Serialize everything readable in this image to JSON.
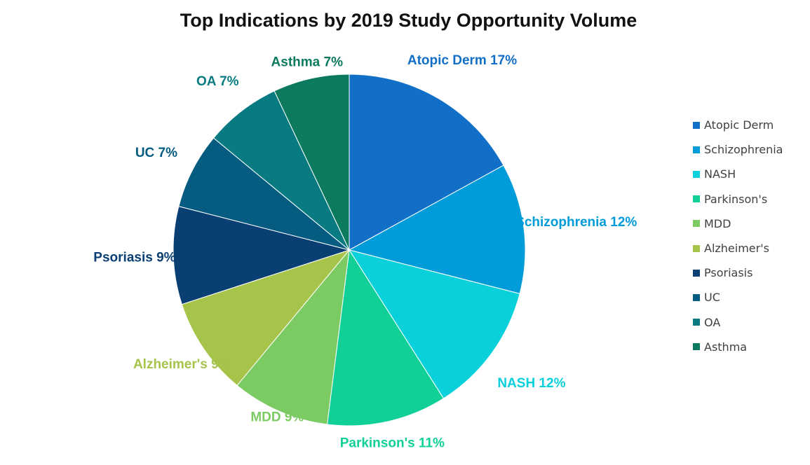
{
  "chart_data": {
    "type": "pie",
    "title": "Top Indications by 2019 Study Opportunity Volume",
    "slices": [
      {
        "label": "Atopic Derm",
        "value": 17,
        "pct_label": "17%",
        "color": "#116FC7"
      },
      {
        "label": "Schizophrenia",
        "value": 12,
        "pct_label": "12%",
        "color": "#009CD9"
      },
      {
        "label": "NASH",
        "value": 12,
        "pct_label": "12%",
        "color": "#0AD0DC"
      },
      {
        "label": "Parkinson's",
        "value": 11,
        "pct_label": "11%",
        "color": "#11D097"
      },
      {
        "label": "MDD",
        "value": 9,
        "pct_label": "9%",
        "color": "#7CCB62"
      },
      {
        "label": "Alzheimer's",
        "value": 9,
        "pct_label": "9%",
        "color": "#A6C34A"
      },
      {
        "label": "Psoriasis",
        "value": 9,
        "pct_label": "9%",
        "color": "#0A3F74"
      },
      {
        "label": "UC",
        "value": 7,
        "pct_label": "7%",
        "color": "#055C80"
      },
      {
        "label": "OA",
        "value": 7,
        "pct_label": "7%",
        "color": "#077B81"
      },
      {
        "label": "Asthma",
        "value": 7,
        "pct_label": "7%",
        "color": "#0C7A5E"
      }
    ],
    "legend_position": "right"
  }
}
